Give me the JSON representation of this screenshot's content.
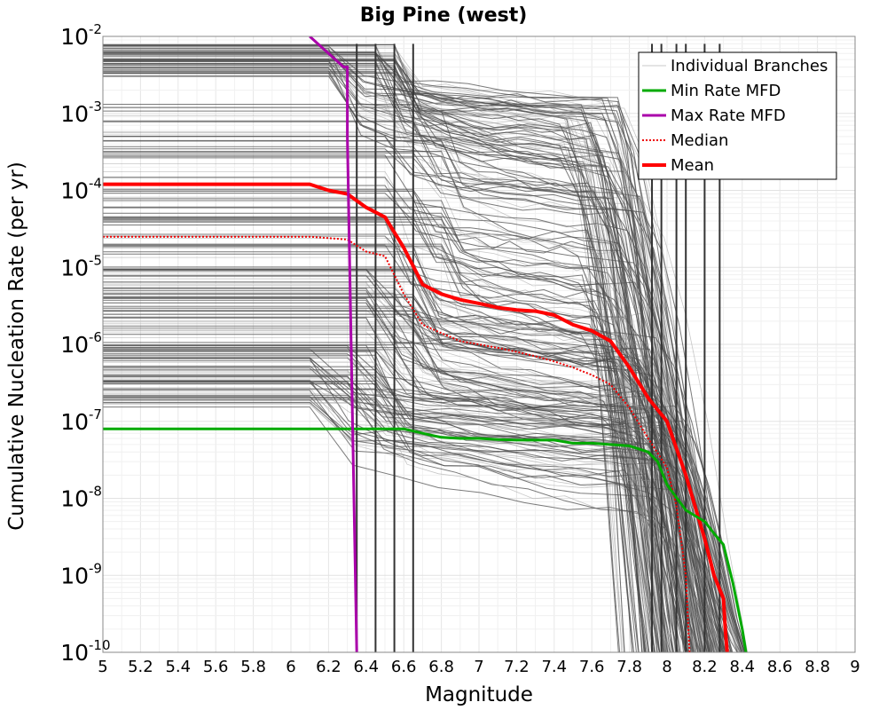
{
  "chart_data": {
    "type": "line",
    "title": "Big Pine (west)",
    "xlabel": "Magnitude",
    "ylabel": "Cumulative Nucleation Rate (per yr)",
    "xlim": [
      5,
      9
    ],
    "ylim": [
      1e-10,
      0.01
    ],
    "yscale": "log",
    "grid": true,
    "x_ticks": [
      "5",
      "5.2",
      "5.4",
      "5.6",
      "5.8",
      "6",
      "6.2",
      "6.4",
      "6.6",
      "6.8",
      "7",
      "7.2",
      "7.4",
      "7.6",
      "7.8",
      "8",
      "8.2",
      "8.4",
      "8.6",
      "8.8",
      "9"
    ],
    "y_ticks": [
      {
        "base": "10",
        "exp": "-2",
        "value": 0.01
      },
      {
        "base": "10",
        "exp": "-3",
        "value": 0.001
      },
      {
        "base": "10",
        "exp": "-4",
        "value": 0.0001
      },
      {
        "base": "10",
        "exp": "-5",
        "value": 1e-05
      },
      {
        "base": "10",
        "exp": "-6",
        "value": 1e-06
      },
      {
        "base": "10",
        "exp": "-7",
        "value": 1e-07
      },
      {
        "base": "10",
        "exp": "-8",
        "value": 1e-08
      },
      {
        "base": "10",
        "exp": "-9",
        "value": 1e-09
      },
      {
        "base": "10",
        "exp": "-10",
        "value": 1e-10
      }
    ],
    "legend_position": "top-right",
    "legend": [
      {
        "label": "Individual Branches",
        "color": "#c8c8c8",
        "style": "solid-thin"
      },
      {
        "label": "Min Rate MFD",
        "color": "#00aa00",
        "style": "solid"
      },
      {
        "label": "Max Rate MFD",
        "color": "#aa00aa",
        "style": "solid"
      },
      {
        "label": "Median",
        "color": "#ee0000",
        "style": "dotted"
      },
      {
        "label": "Mean",
        "color": "#ff0000",
        "style": "solid-thick"
      }
    ],
    "series": [
      {
        "name": "Mean",
        "color": "#ff0000",
        "x": [
          5.0,
          6.1,
          6.2,
          6.3,
          6.4,
          6.5,
          6.6,
          6.7,
          6.8,
          6.9,
          7.0,
          7.1,
          7.2,
          7.3,
          7.4,
          7.5,
          7.6,
          7.7,
          7.8,
          7.9,
          8.0,
          8.1,
          8.2,
          8.25,
          8.3,
          8.31,
          8.32
        ],
        "y": [
          0.00012,
          0.00012,
          0.0001,
          9e-05,
          6e-05,
          4.5e-05,
          1.8e-05,
          6e-06,
          4.5e-06,
          3.8e-06,
          3.4e-06,
          3e-06,
          2.8e-06,
          2.7e-06,
          2.4e-06,
          1.8e-06,
          1.5e-06,
          1.1e-06,
          5e-07,
          2e-07,
          1e-07,
          2e-08,
          3e-09,
          1e-09,
          5e-10,
          2e-10,
          1e-10
        ]
      },
      {
        "name": "Median",
        "color": "#ee0000",
        "x": [
          5.0,
          6.1,
          6.2,
          6.3,
          6.4,
          6.5,
          6.6,
          6.7,
          6.8,
          6.9,
          7.0,
          7.1,
          7.2,
          7.3,
          7.4,
          7.5,
          7.6,
          7.7,
          7.8,
          7.9,
          8.0,
          8.05,
          8.1,
          8.12
        ],
        "y": [
          2.5e-05,
          2.5e-05,
          2.4e-05,
          2.3e-05,
          1.6e-05,
          1.4e-05,
          4.5e-06,
          1.8e-06,
          1.4e-06,
          1.1e-06,
          1e-06,
          9e-07,
          8e-07,
          7e-07,
          6e-07,
          5e-07,
          4e-07,
          3e-07,
          1.5e-07,
          6e-08,
          2.5e-08,
          8e-09,
          1e-09,
          1e-10
        ]
      },
      {
        "name": "Min Rate MFD",
        "color": "#00aa00",
        "x": [
          5.0,
          6.6,
          6.7,
          6.8,
          6.9,
          7.0,
          7.1,
          7.2,
          7.3,
          7.4,
          7.5,
          7.6,
          7.7,
          7.8,
          7.9,
          7.95,
          8.0,
          8.1,
          8.2,
          8.25,
          8.3,
          8.35,
          8.4,
          8.42
        ],
        "y": [
          8e-08,
          8e-08,
          7e-08,
          6.2e-08,
          6e-08,
          6e-08,
          5.8e-08,
          5.7e-08,
          5.7e-08,
          5.7e-08,
          5.2e-08,
          5.2e-08,
          5e-08,
          4.8e-08,
          4e-08,
          3e-08,
          1.5e-08,
          7e-09,
          5e-09,
          3.5e-09,
          2.5e-09,
          8e-10,
          2e-10,
          1e-10
        ]
      },
      {
        "name": "Max Rate MFD",
        "color": "#aa00aa",
        "x": [
          6.1,
          6.2,
          6.28,
          6.28,
          6.3,
          6.3,
          6.35
        ],
        "y": [
          0.01,
          0.006,
          0.004,
          0.004,
          0.004,
          0.0005,
          1e-10
        ]
      }
    ],
    "individual_branches": {
      "name": "Individual Branches",
      "color": "#555555",
      "count": 260,
      "x_start": 5.0,
      "x_end": 8.45,
      "plateau_groups": [
        {
          "low": 1.5e-07,
          "high": 1e-06,
          "drop_x": [
            6.1,
            6.3,
            6.45
          ],
          "knee": 7.9
        },
        {
          "low": 8e-07,
          "high": 1e-05,
          "drop_x": [
            6.4,
            6.55,
            6.65
          ],
          "knee": 7.8
        },
        {
          "low": 1e-05,
          "high": 0.0015,
          "drop_x": [
            6.5,
            6.65,
            6.8
          ],
          "knee": 7.7
        },
        {
          "low": 0.003,
          "high": 0.008,
          "drop_x": [
            6.2,
            6.45,
            6.55
          ],
          "knee": 7.6
        }
      ],
      "vertical_drops_x": [
        6.35,
        6.45,
        6.55,
        6.65,
        7.92,
        7.97,
        8.05,
        8.1,
        8.2,
        8.28
      ]
    }
  }
}
